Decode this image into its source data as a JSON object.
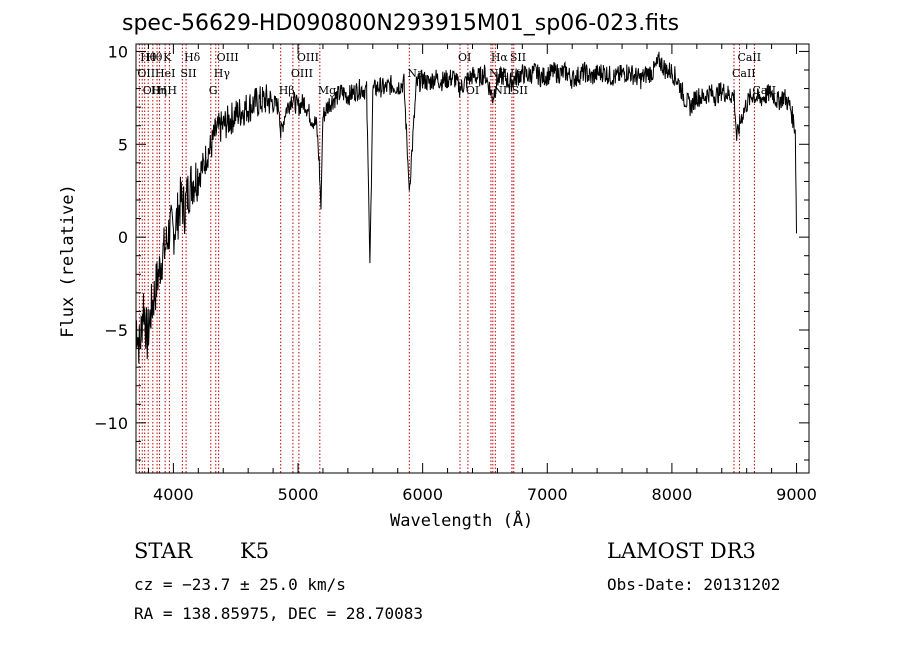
{
  "chart_data": {
    "type": "line",
    "title": "spec-56629-HD090800N293915M01_sp06-023.fits",
    "xlabel": "Wavelength (Å)",
    "ylabel": "Flux (relative)",
    "xlim": [
      3700,
      9100
    ],
    "ylim": [
      -12.7,
      10.4
    ],
    "xticks": [
      4000,
      5000,
      6000,
      7000,
      8000,
      9000
    ],
    "yticks": [
      -10,
      -5,
      0,
      5,
      10
    ],
    "xtick_labels": [
      "4000",
      "5000",
      "6000",
      "7000",
      "8000",
      "9000"
    ],
    "ytick_labels": [
      "−10",
      "−5",
      "0",
      "5",
      "10"
    ],
    "series": [
      {
        "name": "flux",
        "x": [
          3700,
          3730,
          3760,
          3790,
          3820,
          3850,
          3880,
          3910,
          3940,
          3970,
          4000,
          4030,
          4060,
          4090,
          4120,
          4150,
          4180,
          4210,
          4240,
          4270,
          4300,
          4330,
          4360,
          4400,
          4450,
          4500,
          4550,
          4600,
          4650,
          4700,
          4750,
          4800,
          4850,
          4861,
          4900,
          4950,
          5000,
          5050,
          5100,
          5150,
          5170,
          5184,
          5200,
          5250,
          5300,
          5350,
          5400,
          5450,
          5500,
          5550,
          5577,
          5600,
          5650,
          5700,
          5750,
          5800,
          5850,
          5893,
          5950,
          6000,
          6050,
          6100,
          6150,
          6200,
          6250,
          6300,
          6350,
          6400,
          6450,
          6500,
          6563,
          6600,
          6650,
          6700,
          6750,
          6800,
          6850,
          6900,
          6950,
          7000,
          7050,
          7100,
          7150,
          7200,
          7250,
          7300,
          7350,
          7400,
          7450,
          7500,
          7550,
          7600,
          7650,
          7700,
          7750,
          7800,
          7850,
          7900,
          7950,
          8000,
          8050,
          8100,
          8150,
          8200,
          8250,
          8300,
          8350,
          8400,
          8450,
          8500,
          8520,
          8560,
          8600,
          8650,
          8700,
          8750,
          8800,
          8850,
          8900,
          8950,
          8990,
          9000
        ],
        "values": [
          -4.5,
          -6.0,
          -3.5,
          -5.5,
          -4.0,
          -3.0,
          -2.0,
          -1.0,
          -0.5,
          0.5,
          0.3,
          1.0,
          2.0,
          1.5,
          2.5,
          3.0,
          3.2,
          3.5,
          3.8,
          4.5,
          4.8,
          5.5,
          5.8,
          6.0,
          6.3,
          6.6,
          6.8,
          7.0,
          7.2,
          7.3,
          7.4,
          7.2,
          7.0,
          5.5,
          6.8,
          7.5,
          7.0,
          7.3,
          6.5,
          6.0,
          4.0,
          1.5,
          6.5,
          7.2,
          7.5,
          7.8,
          7.6,
          7.8,
          8.0,
          7.9,
          -1.4,
          7.9,
          8.1,
          8.0,
          8.2,
          8.1,
          8.3,
          2.5,
          8.2,
          8.5,
          8.3,
          8.6,
          8.4,
          8.5,
          8.6,
          8.0,
          8.4,
          8.7,
          8.6,
          8.8,
          7.5,
          8.5,
          8.7,
          8.3,
          8.6,
          8.8,
          8.7,
          8.9,
          8.6,
          8.7,
          8.9,
          8.8,
          8.9,
          8.5,
          8.7,
          8.9,
          8.6,
          8.8,
          8.9,
          8.7,
          8.6,
          8.8,
          8.9,
          8.7,
          8.5,
          8.8,
          8.9,
          9.5,
          9.0,
          8.9,
          8.4,
          7.5,
          7.0,
          7.6,
          7.5,
          7.8,
          7.6,
          7.9,
          7.7,
          7.6,
          5.3,
          6.5,
          7.2,
          7.7,
          7.4,
          7.6,
          7.8,
          7.3,
          7.6,
          7.0,
          5.8,
          0.2
        ]
      }
    ],
    "line_markers": [
      {
        "wavelength": 3727,
        "label": "OII",
        "row": 2
      },
      {
        "wavelength": 3750,
        "label": "Hθ",
        "row": 1
      },
      {
        "wavelength": 3770,
        "label": "OII",
        "row": 3
      },
      {
        "wavelength": 3798,
        "label": "Hθ",
        "row": 1
      },
      {
        "wavelength": 3835,
        "label": "Hη",
        "row": 3
      },
      {
        "wavelength": 3869,
        "label": "HeI",
        "row": 2
      },
      {
        "wavelength": 3889,
        "label": "H",
        "row": 3
      },
      {
        "wavelength": 3934,
        "label": "K",
        "row": 1
      },
      {
        "wavelength": 3968,
        "label": "H",
        "row": 3
      },
      {
        "wavelength": 4072,
        "label": "SII",
        "row": 2
      },
      {
        "wavelength": 4102,
        "label": "Hδ",
        "row": 1
      },
      {
        "wavelength": 4300,
        "label": "G",
        "row": 3
      },
      {
        "wavelength": 4340,
        "label": "Hγ",
        "row": 2
      },
      {
        "wavelength": 4363,
        "label": "OIII",
        "row": 1
      },
      {
        "wavelength": 4861,
        "label": "Hβ",
        "row": 3
      },
      {
        "wavelength": 4959,
        "label": "OIII",
        "row": 2
      },
      {
        "wavelength": 5007,
        "label": "OIII",
        "row": 1
      },
      {
        "wavelength": 5175,
        "label": "Mg",
        "row": 3
      },
      {
        "wavelength": 5893,
        "label": "Na",
        "row": 2
      },
      {
        "wavelength": 6300,
        "label": "OI",
        "row": 1
      },
      {
        "wavelength": 6363,
        "label": "OI",
        "row": 3
      },
      {
        "wavelength": 6548,
        "label": "NII",
        "row": 2
      },
      {
        "wavelength": 6563,
        "label": "Hα",
        "row": 1
      },
      {
        "wavelength": 6583,
        "label": "NII",
        "row": 3
      },
      {
        "wavelength": 6716,
        "label": "SII",
        "row": 1
      },
      {
        "wavelength": 6717,
        "label": "Li",
        "row": 2
      },
      {
        "wavelength": 6731,
        "label": "SII",
        "row": 3
      },
      {
        "wavelength": 8498,
        "label": "CaII",
        "row": 2
      },
      {
        "wavelength": 8542,
        "label": "CaII",
        "row": 1
      },
      {
        "wavelength": 8662,
        "label": "CaII",
        "row": 3
      }
    ],
    "colors": {
      "curve": "#000000",
      "marker": "#c00000",
      "axes": "#000000"
    }
  },
  "info": {
    "object_class": "STAR",
    "subclass": "K5",
    "redshift": "cz = −23.7 ± 25.0 km/s",
    "coords": "RA = 138.85975, DEC =  28.70083",
    "survey": "LAMOST DR3",
    "obs_date": "Obs-Date: 20131202"
  }
}
